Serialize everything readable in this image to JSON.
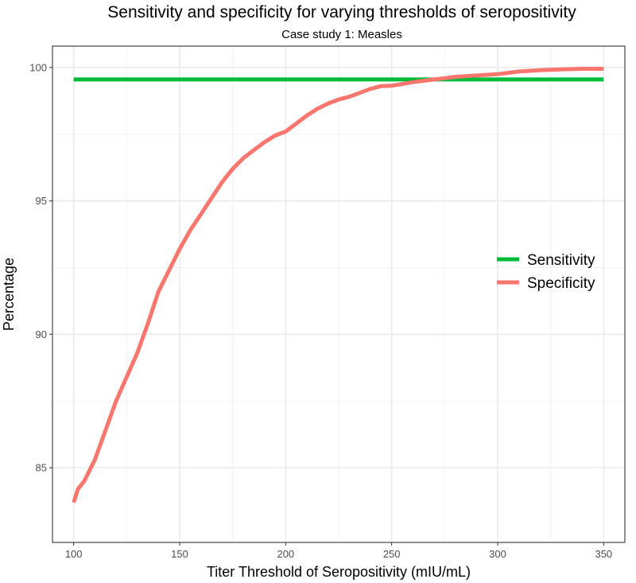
{
  "chart_data": {
    "type": "line",
    "title": "Sensitivity and specificity for varying thresholds of seropositivity",
    "subtitle": "Case study 1: Measles",
    "xlabel": "Titer Threshold of Seropositivity (mIU/mL)",
    "ylabel": "Percentage",
    "xlim": [
      90,
      360
    ],
    "ylim": [
      82.2,
      100.8
    ],
    "x_ticks": [
      100,
      150,
      200,
      250,
      300,
      350
    ],
    "y_ticks": [
      85,
      90,
      95,
      100
    ],
    "grid": true,
    "legend_position": "right",
    "series": [
      {
        "name": "Sensitivity",
        "color": "#00ba38",
        "x": [
          100,
          350
        ],
        "y": [
          99.55,
          99.55
        ]
      },
      {
        "name": "Specificity",
        "color": "#f8766d",
        "x": [
          100,
          102,
          105,
          110,
          115,
          120,
          125,
          130,
          135,
          140,
          145,
          150,
          155,
          160,
          165,
          170,
          175,
          180,
          185,
          190,
          195,
          200,
          205,
          210,
          215,
          220,
          225,
          230,
          235,
          240,
          245,
          250,
          255,
          260,
          265,
          270,
          275,
          280,
          290,
          300,
          310,
          320,
          330,
          340,
          350
        ],
        "y": [
          83.7,
          84.2,
          84.5,
          85.3,
          86.4,
          87.5,
          88.4,
          89.3,
          90.4,
          91.6,
          92.4,
          93.2,
          93.9,
          94.5,
          95.1,
          95.7,
          96.2,
          96.6,
          96.9,
          97.2,
          97.45,
          97.6,
          97.9,
          98.2,
          98.45,
          98.65,
          98.8,
          98.9,
          99.05,
          99.2,
          99.3,
          99.32,
          99.38,
          99.45,
          99.5,
          99.55,
          99.6,
          99.65,
          99.7,
          99.75,
          99.85,
          99.9,
          99.93,
          99.95,
          99.95
        ]
      }
    ]
  }
}
